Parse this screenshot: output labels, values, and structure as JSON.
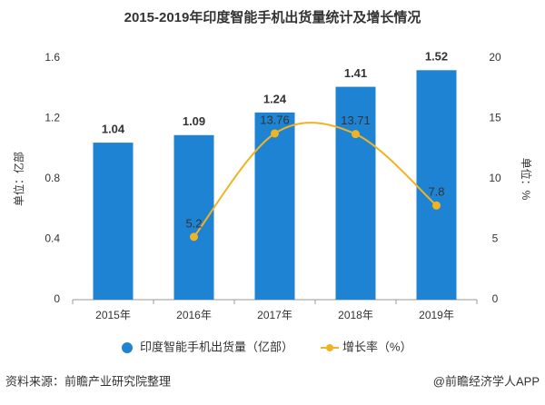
{
  "chart_data": {
    "type": "bar",
    "title": "2015-2019年印度智能手机出货量统计及增长情况",
    "categories": [
      "2015年",
      "2016年",
      "2017年",
      "2018年",
      "2019年"
    ],
    "series": [
      {
        "name": "印度智能手机出货量（亿部）",
        "type": "bar",
        "color": "#1f83d4",
        "values": [
          1.04,
          1.09,
          1.24,
          1.41,
          1.52
        ]
      },
      {
        "name": "增长率（%）",
        "type": "line",
        "axis": "y2",
        "color": "#f0b323",
        "values": [
          null,
          5.2,
          13.76,
          13.71,
          7.8
        ]
      }
    ],
    "ylim": [
      0,
      1.6
    ],
    "yticks": [
      0,
      0.4,
      0.8,
      1.2,
      1.6
    ],
    "y2lim": [
      0,
      20
    ],
    "y2ticks": [
      0,
      5,
      10,
      15,
      20
    ],
    "y_label": "单位：亿部",
    "y2_label": "单位：%",
    "grid": false,
    "legend": "bottom",
    "source": "资料来源：前瞻产业研究院整理",
    "credit": "@前瞻经济学人APP"
  }
}
